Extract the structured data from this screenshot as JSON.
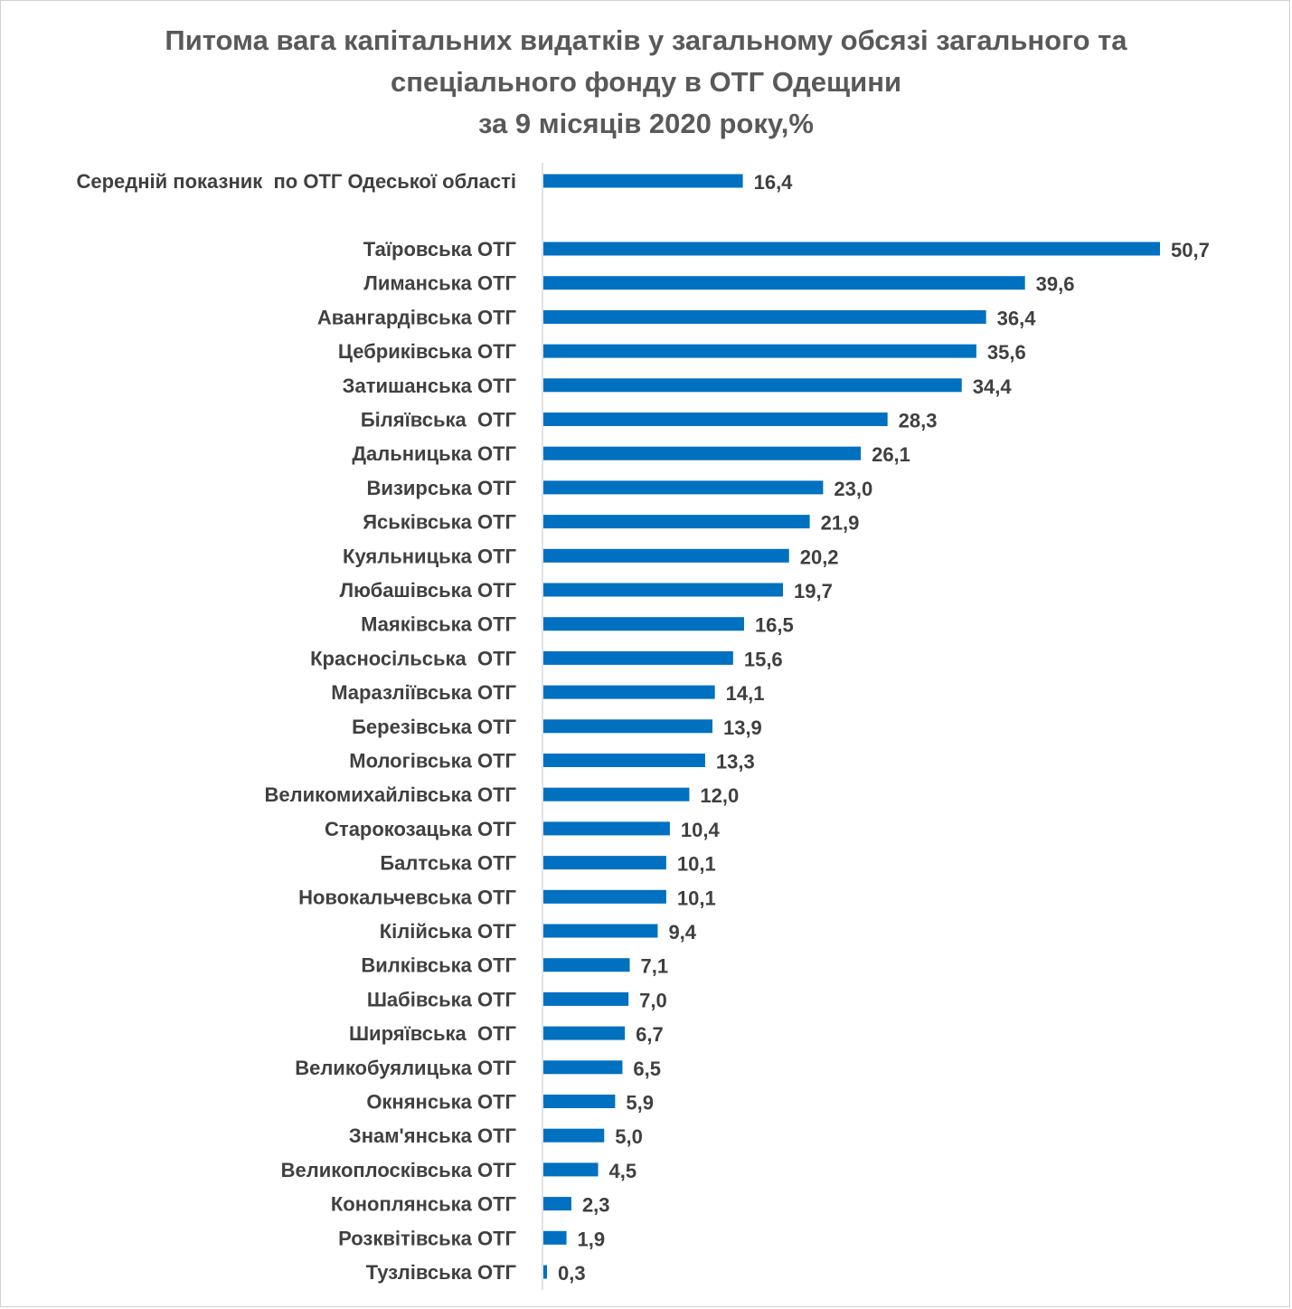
{
  "chart_data": {
    "type": "bar",
    "orientation": "horizontal",
    "title_lines": [
      "Питома вага капітальних видатків у загальному обсязі загального та",
      "спеціального фонду в ОТГ Одещини",
      "за 9 місяців 2020 року,%"
    ],
    "xlim": [
      0,
      52
    ],
    "grid": false,
    "bar_color": "#0070C0",
    "average": {
      "label": "Середній показник  по ОТГ Одеської області",
      "value": 16.4,
      "value_label": "16,4"
    },
    "categories": [
      "Таїровська ОТГ",
      "Лиманська ОТГ",
      "Авангардівська ОТГ",
      "Цебриківська ОТГ",
      "Затишанська ОТГ",
      "Біляївська  ОТГ",
      "Дальницька ОТГ",
      "Визирська ОТГ",
      "Яськівська ОТГ",
      "Куяльницька ОТГ",
      "Любашівська ОТГ",
      "Маяківська ОТГ",
      "Красносільська  ОТГ",
      "Маразліївська ОТГ",
      "Березівська ОТГ",
      "Мологівська ОТГ",
      "Великомихайлівська ОТГ",
      "Старокозацька ОТГ",
      "Балтська ОТГ",
      "Новокальчевська ОТГ",
      "Кілійська ОТГ",
      "Вилківська ОТГ",
      "Шабівська ОТГ",
      "Ширяївська  ОТГ",
      "Великобуялицька ОТГ",
      "Окнянська ОТГ",
      "Знам'янська ОТГ",
      "Великоплосківська ОТГ",
      "Коноплянська ОТГ",
      "Розквітівська ОТГ",
      "Тузлівська ОТГ"
    ],
    "values": [
      50.7,
      39.6,
      36.4,
      35.6,
      34.4,
      28.3,
      26.1,
      23.0,
      21.9,
      20.2,
      19.7,
      16.5,
      15.6,
      14.1,
      13.9,
      13.3,
      12.0,
      10.4,
      10.1,
      10.1,
      9.4,
      7.1,
      7.0,
      6.7,
      6.5,
      5.9,
      5.0,
      4.5,
      2.3,
      1.9,
      0.3
    ],
    "value_labels": [
      "50,7",
      "39,6",
      "36,4",
      "35,6",
      "34,4",
      "28,3",
      "26,1",
      "23,0",
      "21,9",
      "20,2",
      "19,7",
      "16,5",
      "15,6",
      "14,1",
      "13,9",
      "13,3",
      "12,0",
      "10,4",
      "10,1",
      "10,1",
      "9,4",
      "7,1",
      "7,0",
      "6,7",
      "6,5",
      "5,9",
      "5,0",
      "4,5",
      "2,3",
      "1,9",
      "0,3"
    ]
  }
}
